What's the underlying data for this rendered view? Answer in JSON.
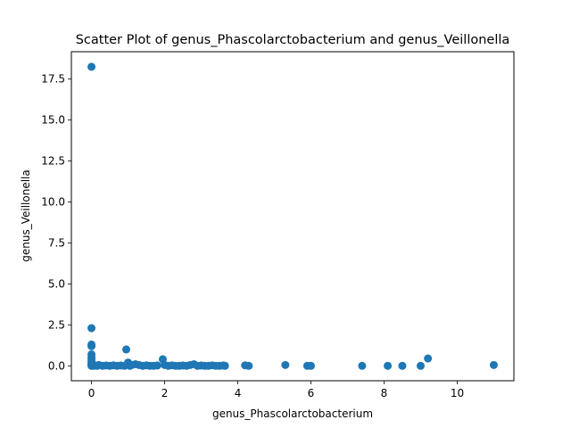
{
  "chart_data": {
    "type": "scatter",
    "title": "Scatter Plot of genus_Phascolarctobacterium and genus_Veillonella",
    "xlabel": "genus_Phascolarctobacterium",
    "ylabel": "genus_Veillonella",
    "xlim": [
      -0.55,
      11.55
    ],
    "ylim": [
      -0.91,
      19.17
    ],
    "xticks": [
      0,
      2,
      4,
      6,
      8,
      10
    ],
    "xtick_labels": [
      "0",
      "2",
      "4",
      "6",
      "8",
      "10"
    ],
    "yticks": [
      0,
      2.5,
      5,
      7.5,
      10,
      12.5,
      15,
      17.5
    ],
    "ytick_labels": [
      "0.0",
      "2.5",
      "5.0",
      "7.5",
      "10.0",
      "12.5",
      "15.0",
      "17.5"
    ],
    "grid": false,
    "marker_color": "#1f77b4",
    "points": [
      {
        "x": 0,
        "y": 18.25
      },
      {
        "x": 0,
        "y": 2.3
      },
      {
        "x": 0,
        "y": 1.3
      },
      {
        "x": 0,
        "y": 1.2
      },
      {
        "x": 0,
        "y": 0.7
      },
      {
        "x": 0,
        "y": 0.5
      },
      {
        "x": 0,
        "y": 0.35
      },
      {
        "x": 0,
        "y": 0.2
      },
      {
        "x": 0,
        "y": 0.1
      },
      {
        "x": 0,
        "y": 0.03
      },
      {
        "x": 0,
        "y": 0
      },
      {
        "x": 0.05,
        "y": 0
      },
      {
        "x": 0.1,
        "y": 0.02
      },
      {
        "x": 0.15,
        "y": 0
      },
      {
        "x": 0.2,
        "y": 0.05
      },
      {
        "x": 0.3,
        "y": 0
      },
      {
        "x": 0.4,
        "y": 0.02
      },
      {
        "x": 0.5,
        "y": 0
      },
      {
        "x": 0.6,
        "y": 0.03
      },
      {
        "x": 0.7,
        "y": 0
      },
      {
        "x": 0.8,
        "y": 0.02
      },
      {
        "x": 0.9,
        "y": 0
      },
      {
        "x": 0.95,
        "y": 1.0
      },
      {
        "x": 1.0,
        "y": 0.2
      },
      {
        "x": 1.05,
        "y": 0
      },
      {
        "x": 1.1,
        "y": 0.05
      },
      {
        "x": 1.2,
        "y": 0.1
      },
      {
        "x": 1.3,
        "y": 0.05
      },
      {
        "x": 1.4,
        "y": 0
      },
      {
        "x": 1.5,
        "y": 0.03
      },
      {
        "x": 1.6,
        "y": 0
      },
      {
        "x": 1.7,
        "y": 0
      },
      {
        "x": 1.8,
        "y": 0.02
      },
      {
        "x": 1.95,
        "y": 0.4
      },
      {
        "x": 2.0,
        "y": 0.05
      },
      {
        "x": 2.1,
        "y": 0
      },
      {
        "x": 2.2,
        "y": 0.03
      },
      {
        "x": 2.3,
        "y": 0
      },
      {
        "x": 2.4,
        "y": 0
      },
      {
        "x": 2.5,
        "y": 0.02
      },
      {
        "x": 2.6,
        "y": 0
      },
      {
        "x": 2.7,
        "y": 0.05
      },
      {
        "x": 2.8,
        "y": 0.1
      },
      {
        "x": 2.9,
        "y": 0
      },
      {
        "x": 3.0,
        "y": 0.02
      },
      {
        "x": 3.1,
        "y": 0
      },
      {
        "x": 3.2,
        "y": 0
      },
      {
        "x": 3.3,
        "y": 0.03
      },
      {
        "x": 3.4,
        "y": 0
      },
      {
        "x": 3.5,
        "y": 0
      },
      {
        "x": 3.6,
        "y": 0.02
      },
      {
        "x": 3.65,
        "y": 0
      },
      {
        "x": 4.2,
        "y": 0.03
      },
      {
        "x": 4.3,
        "y": 0
      },
      {
        "x": 5.3,
        "y": 0.05
      },
      {
        "x": 5.9,
        "y": 0
      },
      {
        "x": 6.0,
        "y": 0
      },
      {
        "x": 7.4,
        "y": 0
      },
      {
        "x": 8.1,
        "y": 0
      },
      {
        "x": 8.5,
        "y": 0
      },
      {
        "x": 9.0,
        "y": 0
      },
      {
        "x": 9.2,
        "y": 0.45
      },
      {
        "x": 11.0,
        "y": 0.05
      }
    ]
  }
}
